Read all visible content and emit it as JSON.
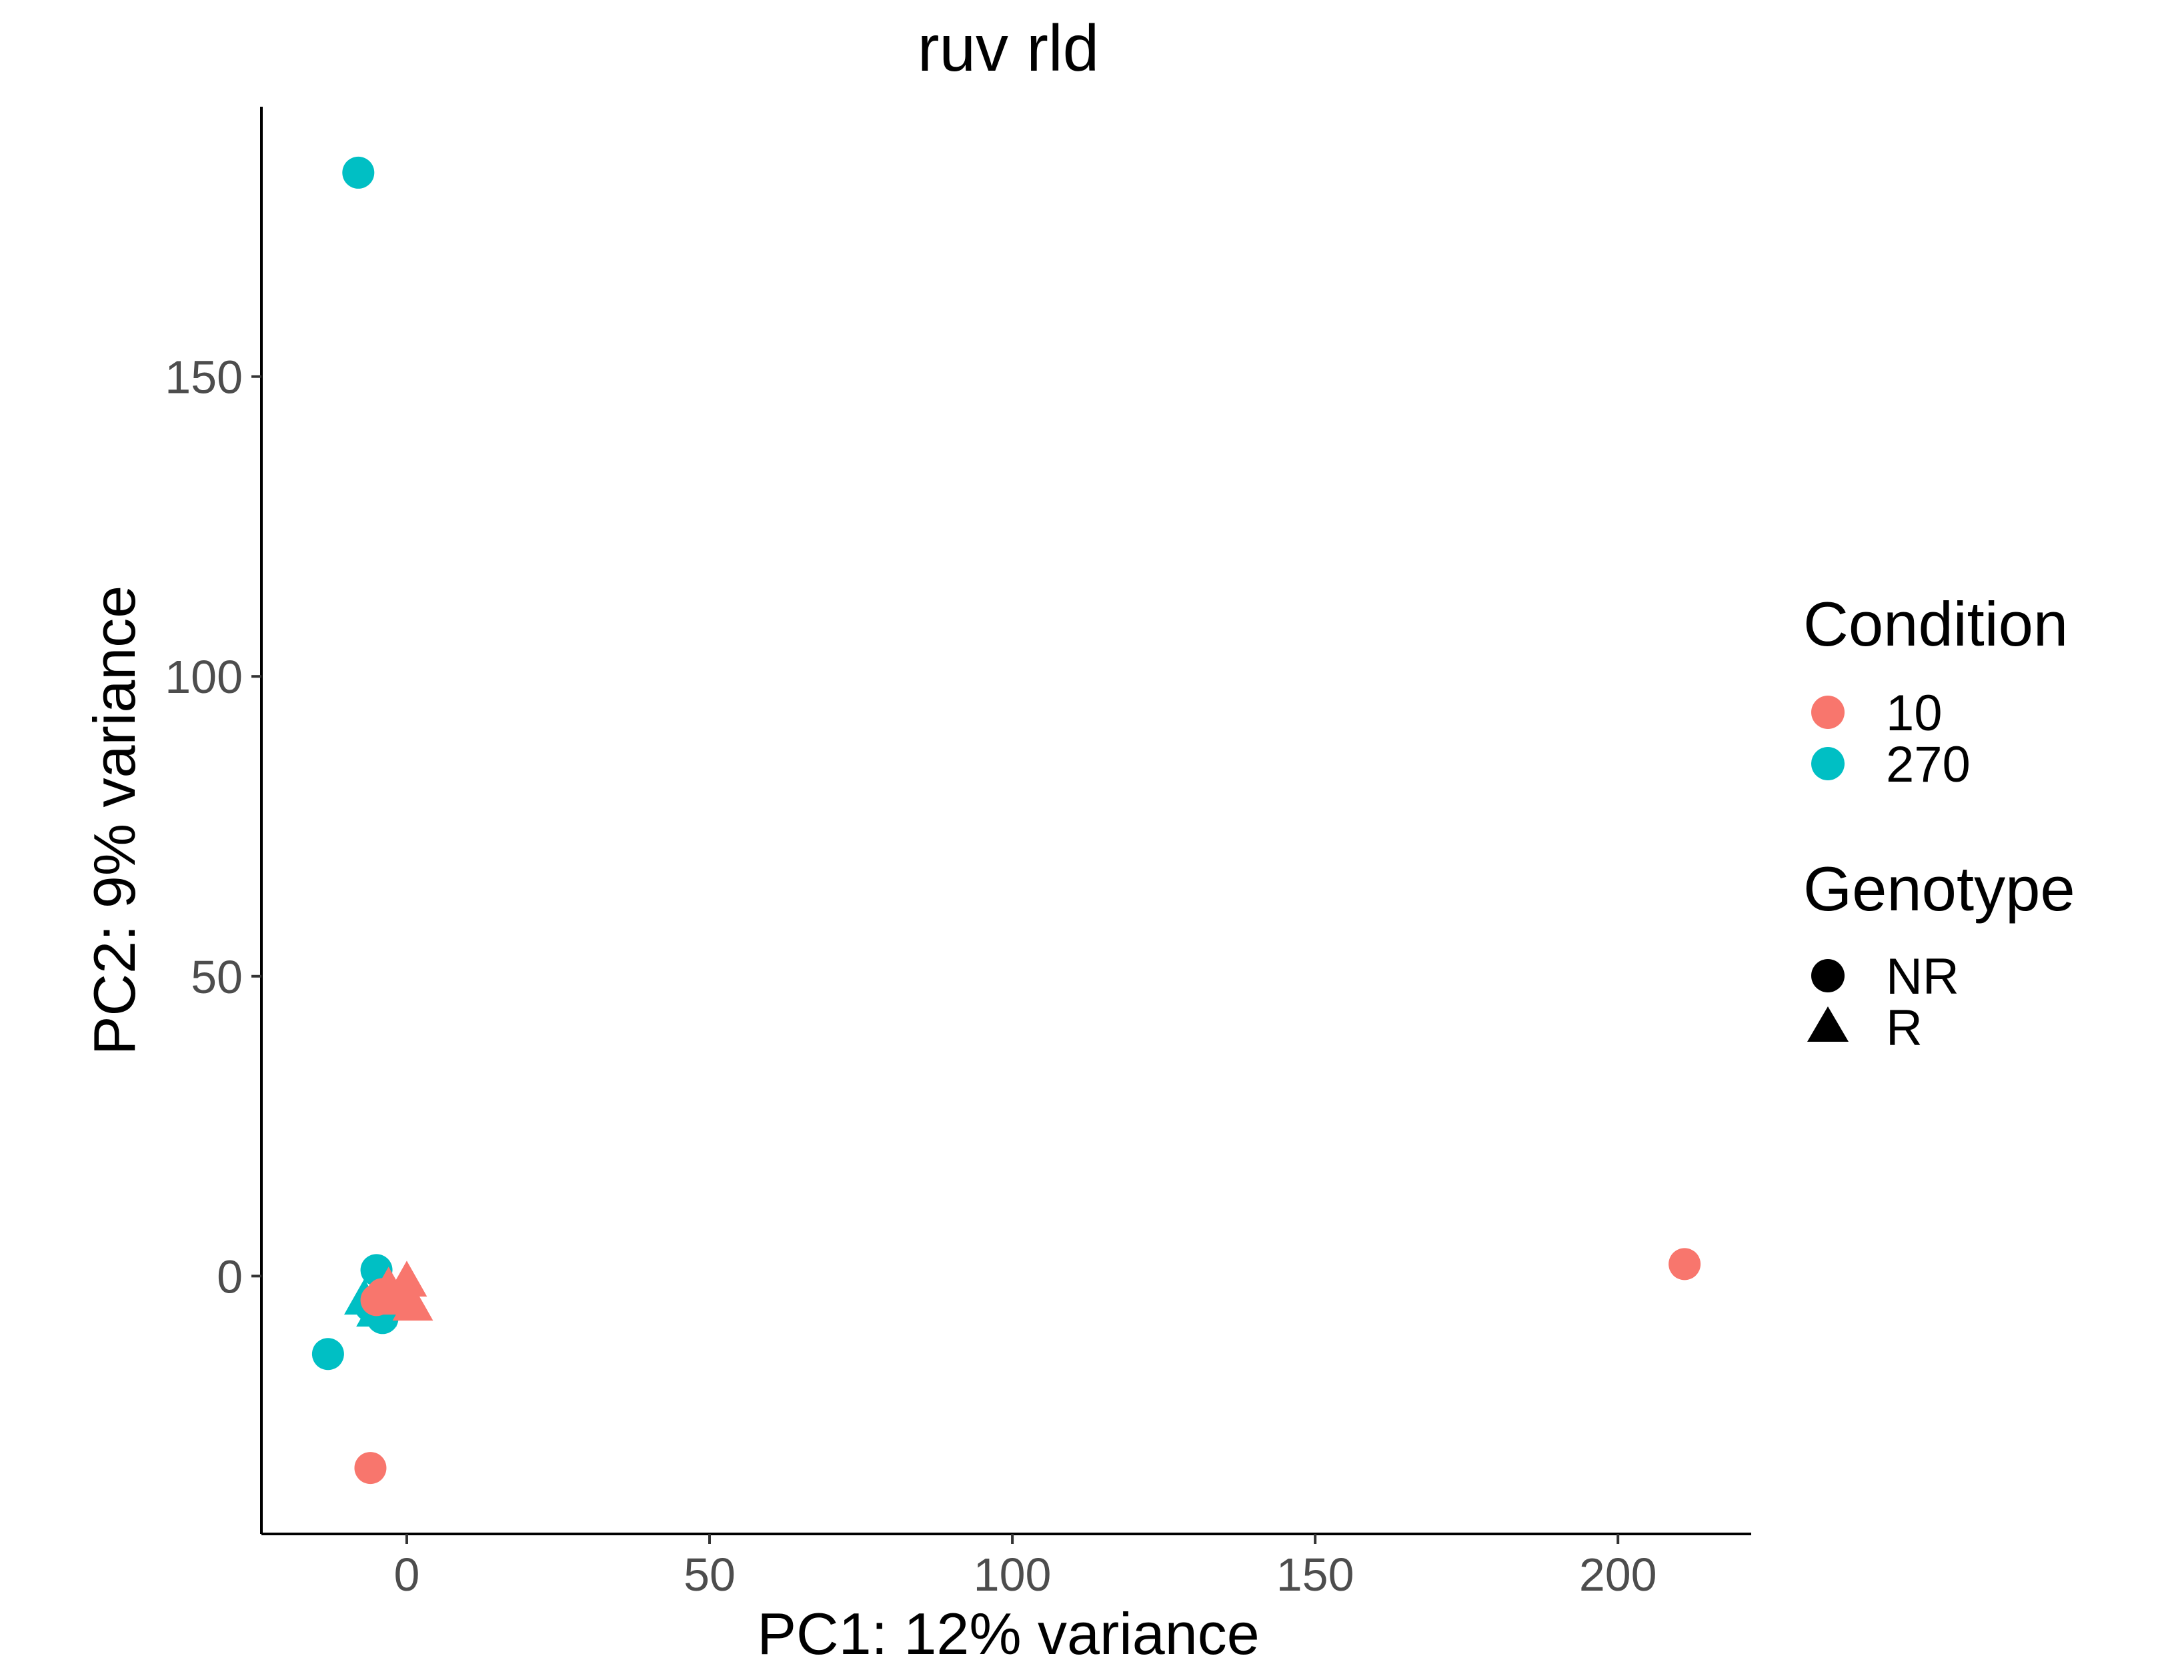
{
  "chart_data": {
    "type": "scatter",
    "title": "ruv rld",
    "xlabel": "PC1: 12% variance",
    "ylabel": "PC2: 9% variance",
    "xlim": [
      -24,
      222
    ],
    "ylim": [
      -43,
      195
    ],
    "x_ticks": [
      0,
      50,
      100,
      150,
      200
    ],
    "y_ticks": [
      0,
      50,
      100,
      150
    ],
    "grid": false,
    "legend_position": "right",
    "legends": {
      "color": {
        "title": "Condition",
        "entries": [
          {
            "label": "10",
            "color": "#F8766D"
          },
          {
            "label": "270",
            "color": "#00BFC4"
          }
        ]
      },
      "shape": {
        "title": "Genotype",
        "entries": [
          {
            "label": "NR",
            "shape": "circle"
          },
          {
            "label": "R",
            "shape": "triangle"
          }
        ]
      }
    },
    "points": [
      {
        "x": -8,
        "y": 184,
        "condition": "270",
        "genotype": "NR"
      },
      {
        "x": -5,
        "y": 1,
        "condition": "270",
        "genotype": "NR"
      },
      {
        "x": -13,
        "y": -13,
        "condition": "270",
        "genotype": "NR"
      },
      {
        "x": -6,
        "y": -5,
        "condition": "270",
        "genotype": "NR"
      },
      {
        "x": -4,
        "y": -7,
        "condition": "270",
        "genotype": "NR"
      },
      {
        "x": -7,
        "y": -4,
        "condition": "270",
        "genotype": "R"
      },
      {
        "x": -5,
        "y": -6,
        "condition": "270",
        "genotype": "R"
      },
      {
        "x": -6,
        "y": -32,
        "condition": "10",
        "genotype": "NR"
      },
      {
        "x": 211,
        "y": 2,
        "condition": "10",
        "genotype": "NR"
      },
      {
        "x": -5,
        "y": -4,
        "condition": "10",
        "genotype": "NR"
      },
      {
        "x": -4,
        "y": -3,
        "condition": "10",
        "genotype": "NR"
      },
      {
        "x": -3,
        "y": -2,
        "condition": "10",
        "genotype": "R"
      },
      {
        "x": -1,
        "y": -3,
        "condition": "10",
        "genotype": "R"
      },
      {
        "x": 0,
        "y": -1,
        "condition": "10",
        "genotype": "R"
      },
      {
        "x": 1,
        "y": -5,
        "condition": "10",
        "genotype": "R"
      },
      {
        "x": -2,
        "y": -4,
        "condition": "10",
        "genotype": "R"
      }
    ]
  }
}
